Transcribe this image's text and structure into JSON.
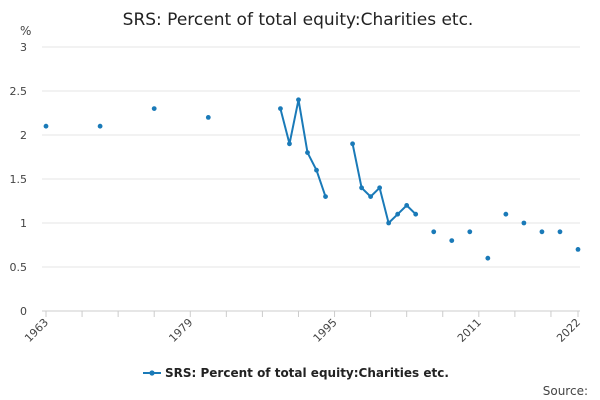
{
  "chart_data": {
    "type": "line",
    "title": "SRS: Percent of total equity:Charities etc.",
    "ylabel": "%",
    "xlabel": "",
    "ylim": [
      0,
      3
    ],
    "xlim": [
      1963,
      2022
    ],
    "yticks": [
      "0",
      "0.5",
      "1",
      "1.5",
      "2",
      "2.5",
      "3"
    ],
    "yticks_values": [
      0,
      0.5,
      1,
      1.5,
      2,
      2.5,
      3
    ],
    "xtick_labels": [
      "1963",
      "1979",
      "1995",
      "2011",
      "2022"
    ],
    "xtick_values": [
      1963,
      1979,
      1995,
      2011,
      2022
    ],
    "xtick_minor_values": [
      1963,
      1967,
      1971,
      1975,
      1979,
      1983,
      1987,
      1991,
      1995,
      1999,
      2003,
      2007,
      2011,
      2015,
      2019,
      2022
    ],
    "grid": true,
    "legend_position": "bottom",
    "series": [
      {
        "name": "SRS: Percent of total equity:Charities etc.",
        "color": "#1a7ab8",
        "points": [
          {
            "x": 1963,
            "y": 2.1
          },
          {
            "x": 1969,
            "y": 2.1
          },
          {
            "x": 1975,
            "y": 2.3
          },
          {
            "x": 1981,
            "y": 2.2
          },
          {
            "x": 1989,
            "y": 2.3
          },
          {
            "x": 1990,
            "y": 1.9
          },
          {
            "x": 1991,
            "y": 2.4
          },
          {
            "x": 1992,
            "y": 1.8
          },
          {
            "x": 1993,
            "y": 1.6
          },
          {
            "x": 1994,
            "y": 1.3
          },
          {
            "x": 1997,
            "y": 1.9
          },
          {
            "x": 1998,
            "y": 1.4
          },
          {
            "x": 1999,
            "y": 1.3
          },
          {
            "x": 2000,
            "y": 1.4
          },
          {
            "x": 2001,
            "y": 1.0
          },
          {
            "x": 2002,
            "y": 1.1
          },
          {
            "x": 2003,
            "y": 1.2
          },
          {
            "x": 2004,
            "y": 1.1
          },
          {
            "x": 2006,
            "y": 0.9
          },
          {
            "x": 2008,
            "y": 0.8
          },
          {
            "x": 2010,
            "y": 0.9
          },
          {
            "x": 2012,
            "y": 0.6
          },
          {
            "x": 2014,
            "y": 1.1
          },
          {
            "x": 2016,
            "y": 1.0
          },
          {
            "x": 2018,
            "y": 0.9
          },
          {
            "x": 2020,
            "y": 0.9
          },
          {
            "x": 2022,
            "y": 0.7
          }
        ],
        "segments": [
          [
            1989,
            1994
          ],
          [
            1997,
            2004
          ]
        ]
      }
    ],
    "source_label": "Source:"
  }
}
